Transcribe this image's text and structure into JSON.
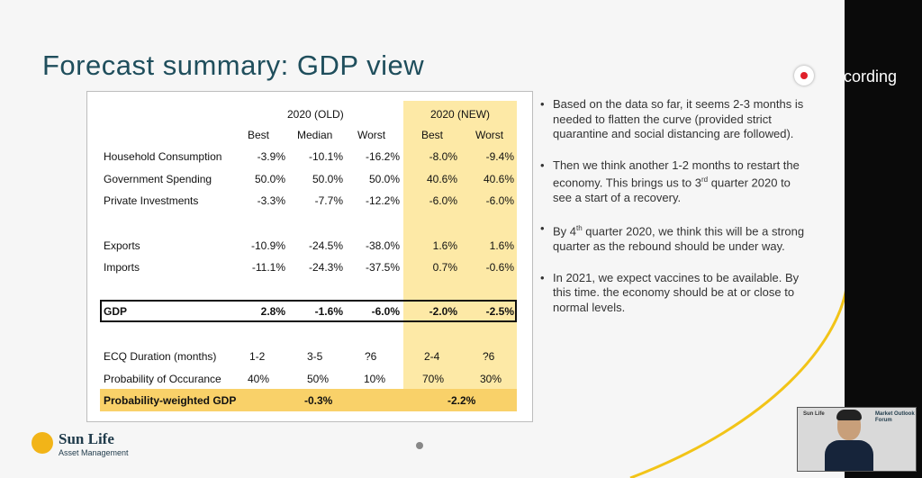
{
  "slide": {
    "title": "Forecast summary: GDP view",
    "table": {
      "group_old": "2020 (OLD)",
      "group_new": "2020 (NEW)",
      "subheaders": [
        "Best",
        "Median",
        "Worst",
        "Best",
        "Worst"
      ],
      "rows": [
        {
          "label": "Household Consumption",
          "values": [
            "-3.9%",
            "-10.1%",
            "-16.2%",
            "-8.0%",
            "-9.4%"
          ]
        },
        {
          "label": "Government Spending",
          "values": [
            "50.0%",
            "50.0%",
            "50.0%",
            "40.6%",
            "40.6%"
          ]
        },
        {
          "label": "Private Investments",
          "values": [
            "-3.3%",
            "-7.7%",
            "-12.2%",
            "-6.0%",
            "-6.0%"
          ]
        },
        {
          "label": "Exports",
          "values": [
            "-10.9%",
            "-24.5%",
            "-38.0%",
            "1.6%",
            "1.6%"
          ]
        },
        {
          "label": "Imports",
          "values": [
            "-11.1%",
            "-24.3%",
            "-37.5%",
            "0.7%",
            "-0.6%"
          ]
        }
      ],
      "gdp": {
        "label": "GDP",
        "values": [
          "2.8%",
          "-1.6%",
          "-6.0%",
          "-2.0%",
          "-2.5%"
        ]
      },
      "ecq": {
        "label": "ECQ Duration (months)",
        "values": [
          "1-2",
          "3-5",
          "?6",
          "2-4",
          "?6"
        ]
      },
      "prob": {
        "label": "Probability of Occurance",
        "values": [
          "40%",
          "50%",
          "10%",
          "70%",
          "30%"
        ]
      },
      "weighted": {
        "label": "Probability-weighted GDP",
        "old": "-0.3%",
        "new": "-2.2%"
      }
    },
    "bullets": [
      {
        "text": "Based on the data so far, it seems 2-3 months is needed to flatten the curve (provided strict quarantine and social distancing are followed)."
      },
      {
        "pre": "Then we think another 1-2 months to restart the economy. This brings us to 3",
        "sup": "rd",
        "post": " quarter 2020 to see a start of a recovery."
      },
      {
        "pre": "By 4",
        "sup": "th",
        "post": " quarter 2020, we think this will be a strong quarter as the rebound should be under way."
      },
      {
        "text": "In 2021, we expect vaccines to be available. By this time. the economy should be at or close to normal levels."
      }
    ],
    "bullet_char": "•",
    "logo": {
      "name": "Sun Life",
      "sub": "Asset Management"
    }
  },
  "recording": {
    "label": "cording",
    "color": "#e0202a"
  },
  "webcam": {
    "watermark_left": "Sun Life",
    "watermark_right_1": "Market Outlook",
    "watermark_right_2": "Forum"
  },
  "colors": {
    "title": "#1f4e5c",
    "highlight_light": "#fde9a6",
    "highlight_strong": "#f9d169",
    "accent_curve": "#f2c418"
  }
}
